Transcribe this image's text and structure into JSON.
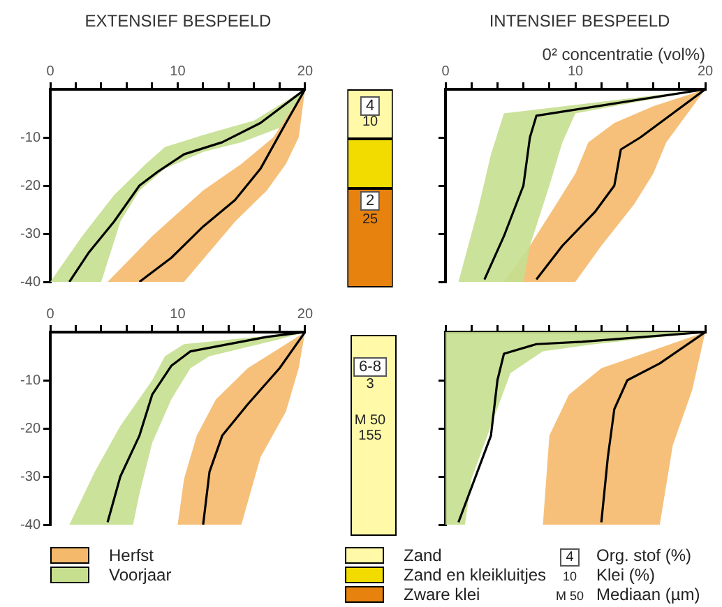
{
  "chart_data": [
    {
      "type": "line",
      "title": "EXTENSIEF BESPEELD",
      "xlim": [
        0,
        20
      ],
      "ylim": [
        -40,
        0
      ],
      "xticks": [
        0,
        {
          "value": 2,
          "label": null
        },
        {
          "value": 4,
          "label": null
        },
        {
          "value": 6,
          "label": null
        },
        {
          "value": 8,
          "label": null
        },
        10,
        {
          "value": 12,
          "label": null
        },
        {
          "value": 14,
          "label": null
        },
        {
          "value": 16,
          "label": null
        },
        {
          "value": 18,
          "label": null
        },
        20
      ],
      "yticks": [
        -40,
        -30,
        -20,
        -10
      ],
      "series": [
        {
          "type": "area",
          "color": "#f5b96b",
          "x": [
            20,
            19.5,
            18.5,
            17,
            14.5,
            10.5,
            4.5,
            8,
            12,
            15,
            17.5,
            20
          ],
          "values": [
            0,
            -10,
            -15.5,
            -21,
            -27.5,
            -40,
            -40,
            -30.5,
            -21,
            -15.5,
            -10,
            0
          ]
        },
        {
          "type": "area",
          "color": "#c5df8f",
          "x": [
            20,
            18,
            15,
            12,
            9,
            7,
            5.5,
            4,
            0,
            2.5,
            5,
            7.5,
            9,
            12,
            16,
            20
          ],
          "values": [
            0,
            -8,
            -11,
            -13,
            -16.5,
            -21,
            -27.5,
            -40,
            -40,
            -30.5,
            -22,
            -15.5,
            -12,
            -9.5,
            -6.5,
            0
          ]
        },
        {
          "type": "line",
          "color": "#000000",
          "x": [
            20,
            18.5,
            16.5,
            14.5,
            12,
            9.5,
            7
          ],
          "values": [
            0,
            -7,
            -16.5,
            -23,
            -28.5,
            -35,
            -40
          ]
        },
        {
          "type": "line",
          "color": "#000000",
          "x": [
            20,
            16.5,
            13.5,
            10.5,
            8.5,
            7,
            5,
            3,
            1.5
          ],
          "values": [
            0,
            -7,
            -11,
            -13.5,
            -17,
            -20,
            -27.5,
            -34,
            -40
          ]
        }
      ]
    },
    {
      "type": "bar",
      "categories": [
        null
      ],
      "stacked": true,
      "ylim": [
        -40,
        0
      ],
      "tick_labels": false,
      "legend": "bottom",
      "series": [
        {
          "name": "Zand",
          "color": "#fff9a8",
          "values": [
            -10
          ]
        },
        {
          "name": "Zand en kleikluitjes",
          "color": "#f2dc00",
          "values": [
            -10
          ]
        },
        {
          "name": "Zware klei",
          "color": "#e8820e",
          "values": [
            -20
          ]
        }
      ],
      "annotations": [
        "4",
        "10",
        "2",
        "25"
      ]
    },
    {
      "type": "line",
      "title": "INTENSIEF BESPEELD",
      "xlabel": "0² concentratie (vol%)",
      "xlim": [
        0,
        20
      ],
      "ylim": [
        -40,
        0
      ],
      "tick_labels": "x",
      "xticks": [
        0,
        {
          "value": 2,
          "label": null
        },
        {
          "value": 4,
          "label": null
        },
        {
          "value": 6,
          "label": null
        },
        {
          "value": 8,
          "label": null
        },
        10,
        {
          "value": 12,
          "label": null
        },
        {
          "value": 14,
          "label": null
        },
        {
          "value": 16,
          "label": null
        },
        {
          "value": 18,
          "label": null
        },
        20
      ],
      "yticks": [
        -40,
        -30,
        -20,
        -10
      ],
      "series": [
        {
          "type": "area",
          "color": "#c5df8f",
          "x": [
            20,
            10,
            9,
            8,
            6.5,
            6,
            1,
            2.5,
            3.5,
            4.5,
            20
          ],
          "values": [
            0,
            -5,
            -11,
            -20,
            -32.5,
            -40,
            -40,
            -25,
            -13.5,
            -5,
            0
          ]
        },
        {
          "type": "area",
          "color": "#f5b96b",
          "x": [
            20,
            18.5,
            17,
            16,
            14.5,
            12,
            10,
            4.5,
            6.5,
            8.5,
            10,
            11,
            13,
            16,
            20
          ],
          "values": [
            0,
            -5.5,
            -11,
            -17.5,
            -24,
            -32.5,
            -40,
            -40,
            -32.5,
            -24,
            -17.5,
            -11,
            -7,
            -3.5,
            0
          ]
        },
        {
          "type": "line",
          "color": "#000000",
          "x": [
            20,
            17.5,
            15,
            13.5,
            13,
            11.5,
            9,
            7
          ],
          "values": [
            0,
            -5,
            -10,
            -12.5,
            -20,
            -25.5,
            -32.5,
            -39.5
          ]
        },
        {
          "type": "line",
          "color": "#000000",
          "x": [
            20,
            7,
            6.5,
            6,
            4.5,
            3
          ],
          "values": [
            0,
            -5.5,
            -10,
            -20,
            -30.5,
            -39.5
          ]
        }
      ]
    },
    {
      "type": "line",
      "xlim": [
        0,
        20
      ],
      "ylim": [
        -40,
        0
      ],
      "legend": "bottom",
      "xticks": [
        0,
        {
          "value": 2,
          "label": null
        },
        {
          "value": 4,
          "label": null
        },
        {
          "value": 6,
          "label": null
        },
        {
          "value": 8,
          "label": null
        },
        10,
        {
          "value": 12,
          "label": null
        },
        {
          "value": 14,
          "label": null
        },
        {
          "value": 16,
          "label": null
        },
        {
          "value": 18,
          "label": null
        },
        20
      ],
      "yticks": [
        -40,
        -30,
        -20,
        -10
      ],
      "series": [
        {
          "type": "area",
          "name": "Herfst",
          "color": "#f5b96b",
          "x": [
            20,
            19.5,
            18.5,
            16.5,
            15,
            10,
            10.5,
            11.5,
            13,
            15.5,
            20
          ],
          "values": [
            0,
            -7.5,
            -16.5,
            -26,
            -40,
            -40,
            -30.5,
            -21.5,
            -14,
            -7.5,
            0
          ]
        },
        {
          "type": "area",
          "name": "Voorjaar",
          "color": "#c5df8f",
          "x": [
            20,
            18,
            12.5,
            11,
            9.5,
            8,
            7,
            6.5,
            1.5,
            3.5,
            5.5,
            8,
            9,
            10.5,
            20
          ],
          "values": [
            0,
            -1.5,
            -5,
            -7.5,
            -14,
            -23,
            -33.5,
            -40,
            -40,
            -29,
            -19.5,
            -10,
            -5,
            -2.5,
            0
          ]
        },
        {
          "type": "line",
          "color": "#000000",
          "x": [
            20,
            18,
            15.5,
            13.5,
            12.5,
            12
          ],
          "values": [
            0,
            -7.5,
            -15,
            -21.5,
            -29,
            -40
          ]
        },
        {
          "type": "line",
          "color": "#000000",
          "x": [
            20,
            17,
            11,
            9.5,
            8,
            7,
            5.5,
            4.5
          ],
          "values": [
            0,
            -1,
            -4,
            -7,
            -13,
            -21.5,
            -30,
            -39.5
          ]
        }
      ]
    },
    {
      "type": "other",
      "annotations": [
        "6-8",
        "3",
        "M 50",
        "155",
        "4",
        "Org. stof (%)",
        "10",
        "Klei (%)",
        "M 50",
        "Mediaan (µm)"
      ]
    },
    {
      "type": "line",
      "xlim": [
        0,
        20
      ],
      "ylim": [
        -40,
        0
      ],
      "tick_labels": false,
      "xticks": [
        0,
        {
          "value": 2,
          "label": null
        },
        {
          "value": 4,
          "label": null
        },
        {
          "value": 6,
          "label": null
        },
        {
          "value": 8,
          "label": null
        },
        {
          "value": 10,
          "label": null
        },
        {
          "value": 12,
          "label": null
        },
        {
          "value": 14,
          "label": null
        },
        {
          "value": 16,
          "label": null
        },
        {
          "value": 18,
          "label": null
        },
        {
          "value": 20,
          "label": null
        }
      ],
      "yticks": [
        -40,
        -30,
        -20,
        -10
      ],
      "series": [
        {
          "type": "area",
          "color": "#c5df8f",
          "x": [
            20,
            11.5,
            7.5,
            5,
            3.5,
            2,
            1.5,
            0,
            0,
            20
          ],
          "values": [
            0,
            -2.5,
            -4,
            -8.5,
            -19.5,
            -30.5,
            -40,
            -40,
            0,
            0
          ]
        },
        {
          "type": "area",
          "color": "#f5b96b",
          "x": [
            20,
            19,
            17.5,
            16.5,
            7.5,
            8,
            9.5,
            12,
            20
          ],
          "values": [
            0,
            -12,
            -23.5,
            -40,
            -40,
            -21.5,
            -13,
            -7.5,
            0
          ]
        },
        {
          "type": "line",
          "color": "#000000",
          "x": [
            20,
            16.5,
            14,
            13,
            12.5,
            12
          ],
          "values": [
            0,
            -6.5,
            -10,
            -16,
            -26,
            -39.5
          ]
        },
        {
          "type": "line",
          "color": "#000000",
          "x": [
            20,
            10.5,
            7,
            4.5,
            4,
            3.5,
            1
          ],
          "values": [
            0,
            -2,
            -2.5,
            -4.5,
            -10,
            -21.5,
            -39.5
          ]
        }
      ]
    }
  ]
}
